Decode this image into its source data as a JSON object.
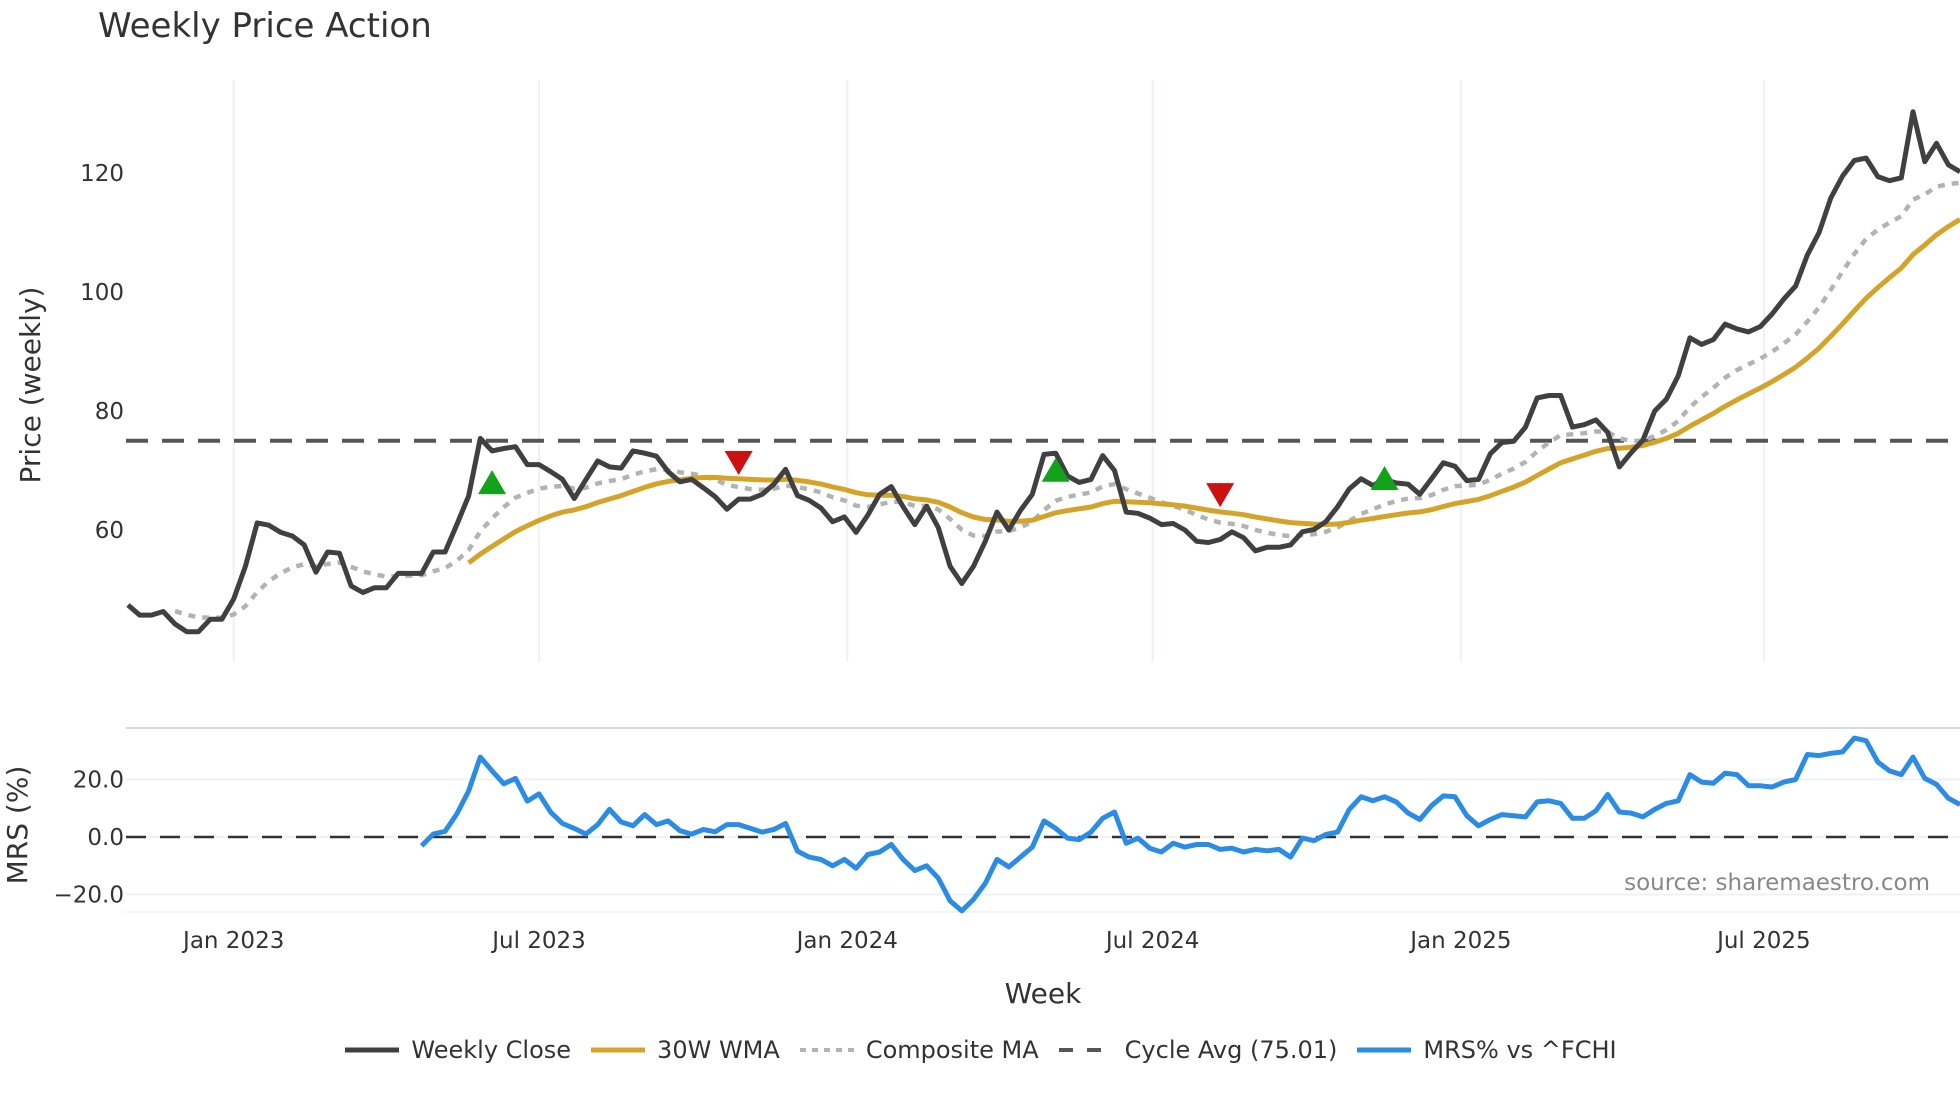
{
  "title": "Weekly Price Action",
  "source": "source: sharemaestro.com",
  "colors": {
    "close": "#404040",
    "wma": "#d4a42a",
    "composite": "#b3b3b3",
    "cycle": "#555555",
    "mrs": "#2b8ce6",
    "buy": "#13a31b",
    "sell": "#cc1111",
    "grid": "#eef1f5"
  },
  "legend": [
    {
      "key": "close",
      "label": "Weekly Close",
      "style": "solid"
    },
    {
      "key": "wma",
      "label": "30W WMA",
      "style": "solid"
    },
    {
      "key": "composite",
      "label": "Composite MA",
      "style": "dotted"
    },
    {
      "key": "cycle",
      "label": "Cycle Avg (75.01)",
      "style": "dashed"
    },
    {
      "key": "mrs",
      "label": "MRS% vs ^FCHI",
      "style": "solid"
    }
  ],
  "chart_data": [
    {
      "type": "line",
      "title": "Weekly Price Action",
      "xlabel": "Week",
      "ylabel": "Price (weekly)",
      "ylim": [
        40.5,
        133
      ],
      "yticks": [
        60,
        80,
        100,
        120
      ],
      "xticks": [
        {
          "label": "Jan 2023",
          "week": 9
        },
        {
          "label": "Jul 2023",
          "week": 35
        },
        {
          "label": "Jan 2024",
          "week": 61.25
        },
        {
          "label": "Jul 2024",
          "week": 87.25
        },
        {
          "label": "Jan 2025",
          "week": 113.5
        },
        {
          "label": "Jul 2025",
          "week": 139.3
        }
      ],
      "grid": true,
      "legend_position": "bottom",
      "cycle_avg": 75.01,
      "wma_period": 30,
      "series": [
        {
          "name": "Weekly Close",
          "values": [
            47.4,
            45.7,
            45.7,
            46.3,
            44.2,
            42.9,
            42.9,
            45.0,
            45.0,
            48.4,
            53.9,
            61.2,
            60.8,
            59.6,
            59.0,
            57.5,
            52.9,
            56.3,
            56.1,
            50.6,
            49.5,
            50.3,
            50.3,
            52.7,
            52.7,
            52.7,
            56.3,
            56.3,
            60.9,
            65.7,
            75.4,
            73.3,
            73.7,
            74.0,
            71.0,
            71.0,
            69.8,
            68.5,
            65.3,
            68.5,
            71.6,
            70.6,
            70.4,
            73.3,
            72.9,
            72.4,
            69.8,
            68.1,
            68.5,
            67.1,
            65.6,
            63.5,
            65.2,
            65.2,
            66.0,
            67.7,
            70.2,
            65.8,
            65.0,
            63.7,
            61.4,
            62.2,
            59.6,
            62.5,
            66.0,
            67.3,
            63.9,
            60.9,
            64.0,
            60.4,
            53.9,
            51.0,
            53.9,
            58.1,
            63.0,
            60.0,
            63.3,
            66.0,
            72.7,
            72.9,
            69.1,
            68.0,
            68.5,
            72.5,
            70.0,
            63.0,
            62.8,
            62.0,
            60.9,
            61.1,
            60.0,
            58.1,
            57.9,
            58.4,
            59.7,
            58.7,
            56.5,
            57.1,
            57.1,
            57.5,
            59.7,
            60.1,
            61.4,
            63.9,
            66.9,
            68.6,
            67.5,
            68.5,
            67.9,
            67.7,
            66.0,
            68.6,
            71.3,
            70.7,
            68.3,
            68.5,
            72.8,
            74.7,
            74.9,
            77.3,
            82.2,
            82.6,
            82.6,
            77.3,
            77.7,
            78.5,
            76.4,
            70.6,
            73.0,
            75.1,
            80.0,
            82.0,
            85.9,
            92.3,
            91.2,
            92.0,
            94.6,
            93.8,
            93.3,
            94.2,
            96.3,
            98.8,
            101.0,
            106.2,
            110.0,
            115.8,
            119.5,
            122.1,
            122.5,
            119.4,
            118.7,
            119.2,
            130.3,
            121.9,
            125.0,
            121.4,
            120.2
          ]
        },
        {
          "name": "30W WMA",
          "derived_from": "Weekly Close",
          "start_week": 29
        },
        {
          "name": "Composite MA",
          "derived_from": "Weekly Close",
          "start_week": 4
        },
        {
          "name": "Cycle Avg (75.01)",
          "values_constant": 75.01
        }
      ],
      "signals": [
        {
          "type": "buy",
          "week": 31,
          "price": 67.7
        },
        {
          "type": "sell",
          "week": 52,
          "price": 71.6
        },
        {
          "type": "buy",
          "week": 79,
          "price": 69.8
        },
        {
          "type": "sell",
          "week": 93,
          "price": 66.2
        },
        {
          "type": "buy",
          "week": 107,
          "price": 68.4
        }
      ]
    },
    {
      "type": "line",
      "title": "",
      "xlabel": "Week",
      "ylabel": "MRS (%)",
      "ylim": [
        -29,
        40
      ],
      "yticks": [
        -20.0,
        0.0,
        20.0
      ],
      "ytick_labels": [
        "−20.0",
        "0.0",
        "20.0"
      ],
      "zero_line": "dashed",
      "series": [
        {
          "name": "MRS% vs ^FCHI",
          "start_week": 25,
          "values": [
            -3.1,
            1.0,
            2.0,
            8.0,
            16.0,
            27.8,
            23.0,
            18.5,
            20.4,
            12.5,
            15.0,
            8.6,
            4.7,
            3.0,
            1.0,
            4.3,
            9.6,
            5.2,
            3.9,
            7.8,
            4.3,
            5.6,
            2.2,
            1.0,
            2.6,
            1.8,
            4.3,
            4.3,
            3.0,
            1.7,
            2.6,
            4.7,
            -4.9,
            -7.0,
            -7.8,
            -10.0,
            -7.8,
            -10.9,
            -6.1,
            -5.2,
            -2.6,
            -7.8,
            -11.7,
            -10.0,
            -14.3,
            -22.2,
            -25.7,
            -21.7,
            -16.1,
            -7.8,
            -10.4,
            -7.0,
            -3.5,
            5.6,
            3.0,
            -0.4,
            -0.9,
            1.7,
            6.5,
            8.7,
            -2.2,
            -0.4,
            -3.9,
            -5.2,
            -2.2,
            -3.5,
            -2.6,
            -2.6,
            -4.3,
            -3.9,
            -5.2,
            -4.3,
            -4.8,
            -4.3,
            -7.0,
            -0.4,
            -1.3,
            0.9,
            1.7,
            9.6,
            14.0,
            12.6,
            14.0,
            12.2,
            8.3,
            6.1,
            10.9,
            14.3,
            14.0,
            7.4,
            3.9,
            6.1,
            7.8,
            7.4,
            7.0,
            12.2,
            12.6,
            11.7,
            6.5,
            6.5,
            9.1,
            14.8,
            8.7,
            8.3,
            7.0,
            9.6,
            11.7,
            12.6,
            21.7,
            19.1,
            18.7,
            22.2,
            21.7,
            17.8,
            17.8,
            17.4,
            19.1,
            20.0,
            28.7,
            28.3,
            29.1,
            29.6,
            34.4,
            33.5,
            26.1,
            23.0,
            21.7,
            27.8,
            20.4,
            18.3,
            13.5,
            11.3
          ]
        }
      ]
    }
  ]
}
